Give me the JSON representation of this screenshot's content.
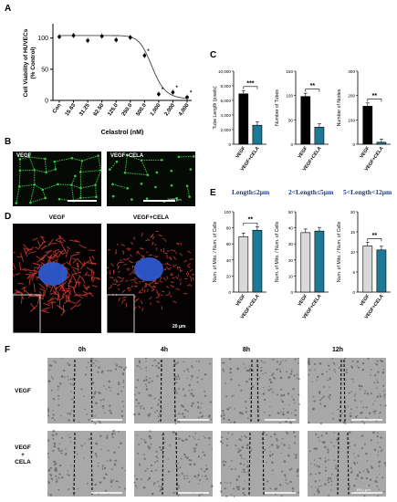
{
  "panels": {
    "A": "A",
    "B": "B",
    "C": "C",
    "D": "D",
    "E": "E",
    "F": "F"
  },
  "colors": {
    "black": "#000000",
    "teal": "#1c7a96",
    "grey": "#d9d9d9",
    "green": "#37c43e",
    "red": "#c63a2f",
    "blue": "#2f5bd3",
    "navy": "#1b3a8c"
  },
  "panelA": {
    "chart_data": {
      "type": "scatter",
      "title": "",
      "ylabel": "Cell Viability of HUVECs (% Control)",
      "xlabel": "Celastrol (nM)",
      "categories": [
        "Con",
        "15.63",
        "31.25",
        "62.50",
        "125.0",
        "250.0",
        "500.0",
        "1,000",
        "2,000",
        "4,000"
      ],
      "values": [
        102,
        104,
        96,
        103,
        97,
        101,
        72,
        10,
        13,
        5
      ],
      "ylim": [
        0,
        120
      ],
      "yticks": [
        "0",
        "50",
        "100"
      ],
      "significance_marks": [
        "*",
        "*",
        "*",
        "*"
      ]
    }
  },
  "panelB": {
    "labels": [
      "VEGF",
      "VEGF+CELA"
    ],
    "scale": "1000 μm"
  },
  "panelC": {
    "chart_data": [
      {
        "type": "bar",
        "ylabel": "Tube Length (pixels)",
        "categories": [
          "VEGF",
          "VEGF+CELA"
        ],
        "values": [
          6900,
          2600
        ],
        "ylim": [
          0,
          10000
        ],
        "yticks": [
          "0",
          "2,000",
          "4,000",
          "6,000",
          "8,000",
          "10,000"
        ],
        "sig": "***"
      },
      {
        "type": "bar",
        "ylabel": "Number of Tubes",
        "categories": [
          "VEGF",
          "VEGF+CELA"
        ],
        "values": [
          98,
          35
        ],
        "ylim": [
          0,
          150
        ],
        "yticks": [
          "0",
          "50",
          "100",
          "150"
        ],
        "sig": "**"
      },
      {
        "type": "bar",
        "ylabel": "Number of Nodes",
        "categories": [
          "VEGF",
          "VEGF+CELA"
        ],
        "values": [
          156,
          8
        ],
        "ylim": [
          0,
          300
        ],
        "yticks": [
          "0",
          "100",
          "200",
          "300"
        ],
        "sig": "**"
      }
    ]
  },
  "panelD": {
    "labels": [
      "VEGF",
      "VEGF+CELA"
    ],
    "scale": "20 μm"
  },
  "panelE": {
    "chart_data": [
      {
        "type": "bar",
        "title": "Length≤2μm",
        "ylabel": "Num. of Mito. / Num. of Cells",
        "categories": [
          "VEGF",
          "VEGF+CELA"
        ],
        "values": [
          69,
          77
        ],
        "ylim": [
          0,
          100
        ],
        "yticks": [
          "0",
          "20",
          "40",
          "60",
          "80",
          "100"
        ],
        "sig": "**"
      },
      {
        "type": "bar",
        "title": "2<Length≤5μm",
        "ylabel": "Num. of Mito. / Num. of Cells",
        "categories": [
          "VEGF",
          "VEGF+CELA"
        ],
        "values": [
          37,
          38
        ],
        "ylim": [
          0,
          50
        ],
        "yticks": [
          "0",
          "10",
          "20",
          "30",
          "40",
          "50"
        ],
        "sig": ""
      },
      {
        "type": "bar",
        "title": "5<Length<12μm",
        "ylabel": "Num. of Mito. / Num. of Cells",
        "categories": [
          "VEGF",
          "VEGF+CELA"
        ],
        "values": [
          11.5,
          10.5
        ],
        "ylim": [
          0,
          20
        ],
        "yticks": [
          "0",
          "5",
          "10",
          "15",
          "20"
        ],
        "sig": "**"
      }
    ]
  },
  "panelF": {
    "times": [
      "0h",
      "4h",
      "8h",
      "12h"
    ],
    "rows": [
      "VEGF",
      "VEGF\n+\nCELA"
    ],
    "scale": "1000 μm"
  }
}
